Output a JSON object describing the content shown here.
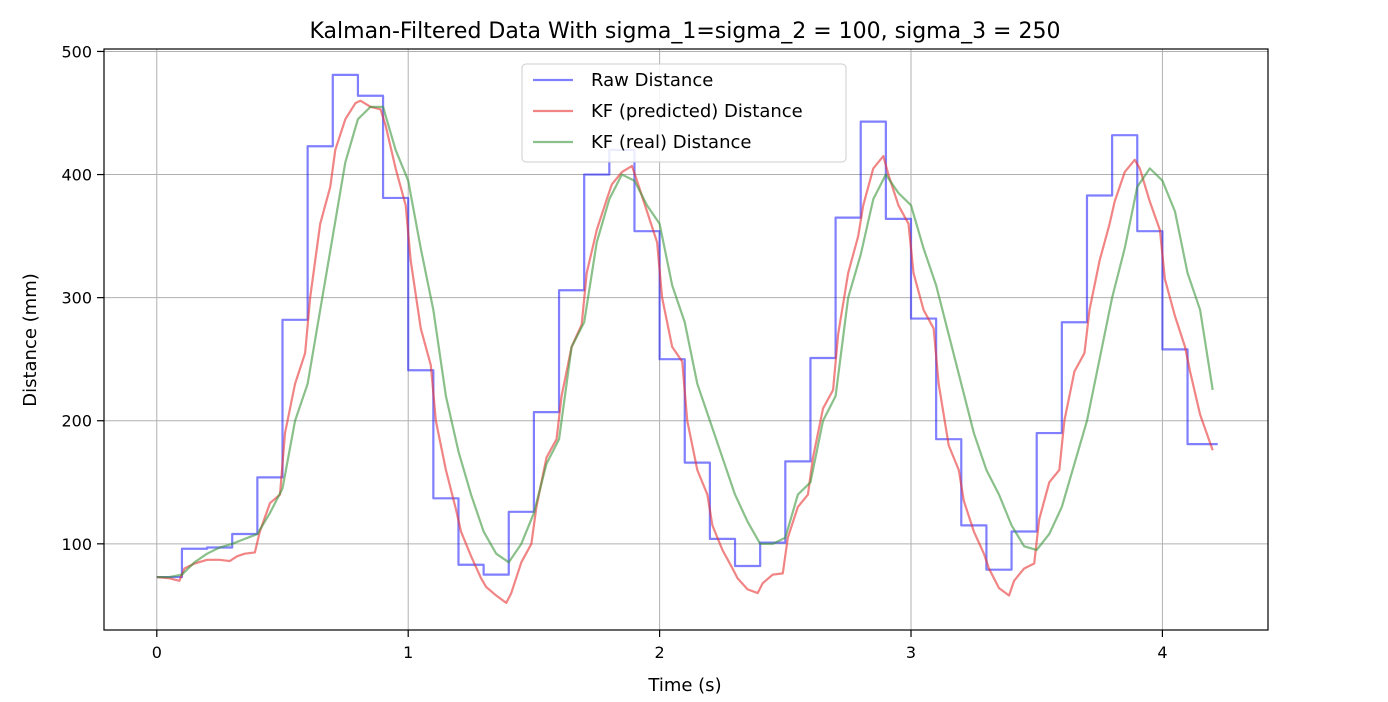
{
  "chart_data": {
    "type": "line",
    "title": "Kalman-Filtered Data With sigma_1=sigma_2 = 100, sigma_3 = 250",
    "xlabel": "Time (s)",
    "ylabel": "Distance (mm)",
    "xlim": [
      -0.21,
      4.42
    ],
    "ylim": [
      30,
      502
    ],
    "xticks": [
      0,
      1,
      2,
      3,
      4
    ],
    "xtick_labels": [
      "0",
      "1",
      "2",
      "3",
      "4"
    ],
    "yticks": [
      100,
      200,
      300,
      400,
      500
    ],
    "ytick_labels": [
      "100",
      "200",
      "300",
      "400",
      "500"
    ],
    "grid": true,
    "legend_position": "top-center",
    "series": [
      {
        "name": "Raw Distance",
        "color": "#0000ff",
        "step": true,
        "x": [
          0,
          0.1,
          0.2,
          0.3,
          0.4,
          0.5,
          0.6,
          0.7,
          0.8,
          0.9,
          1.0,
          1.1,
          1.2,
          1.3,
          1.4,
          1.5,
          1.6,
          1.7,
          1.8,
          1.9,
          2.0,
          2.1,
          2.2,
          2.3,
          2.4,
          2.5,
          2.6,
          2.7,
          2.8,
          2.9,
          3.0,
          3.1,
          3.2,
          3.3,
          3.4,
          3.5,
          3.6,
          3.7,
          3.8,
          3.9,
          4.0,
          4.1,
          4.2
        ],
        "y": [
          73,
          96,
          97,
          108,
          154,
          282,
          423,
          481,
          464,
          381,
          241,
          137,
          83,
          75,
          126,
          207,
          306,
          400,
          420,
          354,
          250,
          166,
          104,
          82,
          101,
          167,
          251,
          365,
          443,
          364,
          283,
          185,
          115,
          79,
          110,
          190,
          280,
          383,
          432,
          354,
          258,
          181,
          181
        ]
      },
      {
        "name": "KF (predicted) Distance",
        "color": "#e83232",
        "step": false,
        "x": [
          0,
          0.05,
          0.09,
          0.11,
          0.15,
          0.2,
          0.25,
          0.29,
          0.32,
          0.35,
          0.39,
          0.41,
          0.45,
          0.49,
          0.51,
          0.55,
          0.59,
          0.61,
          0.65,
          0.69,
          0.71,
          0.75,
          0.79,
          0.81,
          0.85,
          0.89,
          0.91,
          0.95,
          0.99,
          1.01,
          1.05,
          1.09,
          1.11,
          1.15,
          1.19,
          1.21,
          1.25,
          1.29,
          1.31,
          1.35,
          1.39,
          1.41,
          1.45,
          1.49,
          1.51,
          1.55,
          1.59,
          1.61,
          1.65,
          1.69,
          1.71,
          1.75,
          1.79,
          1.81,
          1.85,
          1.89,
          1.91,
          1.95,
          1.99,
          2.01,
          2.05,
          2.09,
          2.11,
          2.15,
          2.19,
          2.21,
          2.25,
          2.29,
          2.31,
          2.35,
          2.39,
          2.41,
          2.45,
          2.49,
          2.51,
          2.55,
          2.59,
          2.61,
          2.65,
          2.69,
          2.71,
          2.75,
          2.79,
          2.81,
          2.85,
          2.89,
          2.91,
          2.95,
          2.99,
          3.01,
          3.05,
          3.09,
          3.11,
          3.15,
          3.19,
          3.21,
          3.25,
          3.29,
          3.31,
          3.35,
          3.39,
          3.41,
          3.45,
          3.49,
          3.51,
          3.55,
          3.59,
          3.61,
          3.65,
          3.69,
          3.71,
          3.75,
          3.79,
          3.81,
          3.85,
          3.89,
          3.91,
          3.95,
          3.99,
          4.01,
          4.05,
          4.09,
          4.11,
          4.15,
          4.2
        ],
        "y": [
          73,
          72,
          70,
          80,
          84,
          87,
          87,
          86,
          90,
          92,
          93,
          110,
          133,
          140,
          190,
          230,
          255,
          300,
          360,
          390,
          420,
          445,
          458,
          460,
          455,
          453,
          440,
          405,
          375,
          330,
          275,
          245,
          200,
          160,
          128,
          110,
          90,
          72,
          65,
          58,
          52,
          60,
          85,
          100,
          130,
          170,
          185,
          220,
          260,
          278,
          320,
          355,
          380,
          392,
          402,
          407,
          395,
          370,
          345,
          300,
          260,
          248,
          200,
          160,
          140,
          115,
          95,
          80,
          72,
          63,
          60,
          68,
          75,
          76,
          105,
          130,
          140,
          170,
          210,
          225,
          270,
          320,
          350,
          375,
          405,
          415,
          400,
          375,
          360,
          320,
          290,
          275,
          230,
          180,
          160,
          135,
          110,
          92,
          80,
          64,
          58,
          70,
          80,
          84,
          120,
          150,
          160,
          200,
          240,
          255,
          290,
          330,
          360,
          378,
          402,
          412,
          405,
          378,
          355,
          315,
          285,
          260,
          240,
          205,
          176
        ]
      },
      {
        "name": "KF (real) Distance",
        "color": "#3c963c",
        "step": false,
        "x": [
          0,
          0.05,
          0.1,
          0.15,
          0.2,
          0.25,
          0.3,
          0.35,
          0.4,
          0.45,
          0.5,
          0.55,
          0.6,
          0.65,
          0.7,
          0.75,
          0.8,
          0.85,
          0.9,
          0.95,
          1.0,
          1.05,
          1.1,
          1.15,
          1.2,
          1.25,
          1.3,
          1.35,
          1.4,
          1.45,
          1.5,
          1.55,
          1.6,
          1.65,
          1.7,
          1.75,
          1.8,
          1.85,
          1.9,
          1.95,
          2.0,
          2.05,
          2.1,
          2.15,
          2.2,
          2.25,
          2.3,
          2.35,
          2.4,
          2.45,
          2.5,
          2.55,
          2.6,
          2.65,
          2.7,
          2.75,
          2.8,
          2.85,
          2.9,
          2.95,
          3.0,
          3.05,
          3.1,
          3.15,
          3.2,
          3.25,
          3.3,
          3.35,
          3.4,
          3.45,
          3.5,
          3.55,
          3.6,
          3.65,
          3.7,
          3.75,
          3.8,
          3.85,
          3.9,
          3.95,
          4.0,
          4.05,
          4.1,
          4.15,
          4.2
        ],
        "y": [
          73,
          73,
          75,
          85,
          92,
          97,
          100,
          104,
          108,
          125,
          145,
          200,
          230,
          290,
          350,
          410,
          445,
          455,
          455,
          420,
          395,
          340,
          290,
          220,
          175,
          140,
          110,
          92,
          85,
          100,
          125,
          165,
          185,
          260,
          280,
          345,
          380,
          400,
          395,
          375,
          360,
          310,
          280,
          230,
          200,
          170,
          140,
          118,
          100,
          100,
          105,
          140,
          150,
          200,
          220,
          300,
          335,
          380,
          400,
          385,
          375,
          340,
          310,
          270,
          230,
          190,
          160,
          140,
          115,
          98,
          95,
          108,
          130,
          165,
          200,
          250,
          300,
          340,
          390,
          405,
          395,
          370,
          320,
          290,
          225
        ]
      }
    ]
  }
}
